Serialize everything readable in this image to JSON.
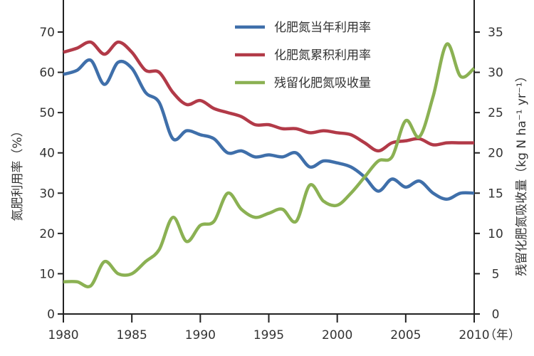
{
  "chart_data": {
    "type": "line",
    "xlabel": "（年）",
    "ylabel": "氮肥利用率（%）",
    "ylabel_right": "残留化肥氮吸收量（kg N ha⁻¹ yr⁻¹）",
    "xlim": [
      1980,
      2010
    ],
    "ylim": [
      0,
      70
    ],
    "ylim_right": [
      0,
      35
    ],
    "x_ticks": [
      "1980",
      "1985",
      "1990",
      "1995",
      "2000",
      "2005",
      "2010"
    ],
    "y_ticks": [
      "0",
      "10",
      "20",
      "30",
      "40",
      "50",
      "60",
      "70"
    ],
    "y_ticks_right": [
      "0",
      "5",
      "10",
      "15",
      "20",
      "25",
      "30",
      "35"
    ],
    "grid": false,
    "legend_placement": "top-center",
    "x": [
      1980,
      1981,
      1982,
      1983,
      1984,
      1985,
      1986,
      1987,
      1988,
      1989,
      1990,
      1991,
      1992,
      1993,
      1994,
      1995,
      1996,
      1997,
      1998,
      1999,
      2000,
      2001,
      2002,
      2003,
      2004,
      2005,
      2006,
      2007,
      2008,
      2009,
      2010
    ],
    "series": [
      {
        "name": "化肥氮当年利用率",
        "axis": "left",
        "color": "#3f6faa",
        "values": [
          59.5,
          60.5,
          63,
          57,
          62.5,
          61,
          55,
          52.5,
          43.5,
          45.5,
          44.5,
          43.5,
          40,
          40.5,
          39,
          39.5,
          39,
          40,
          36.5,
          38,
          37.5,
          36.5,
          34,
          30.5,
          33.5,
          31.5,
          33,
          30,
          28.5,
          30,
          30
        ]
      },
      {
        "name": "化肥氮累积利用率",
        "axis": "left",
        "color": "#b23a48",
        "values": [
          65,
          66,
          67.5,
          64.5,
          67.5,
          65,
          60.5,
          60,
          55,
          52,
          53,
          51,
          50,
          49,
          47,
          47,
          46,
          46,
          45,
          45.5,
          45,
          44.5,
          42.5,
          40.5,
          42.5,
          43,
          43.5,
          42,
          42.5,
          42.5,
          42.5
        ]
      },
      {
        "name": "残留化肥氮吸收量",
        "axis": "right",
        "color": "#8bb153",
        "values": [
          4,
          4,
          3.5,
          6.5,
          5,
          5,
          6.5,
          8,
          12,
          9,
          11,
          11.5,
          15,
          13,
          12,
          12.5,
          13,
          11.5,
          16,
          14,
          13.5,
          15,
          17,
          19,
          19.5,
          24,
          22,
          27,
          33.5,
          29.5,
          30.5
        ]
      }
    ]
  }
}
